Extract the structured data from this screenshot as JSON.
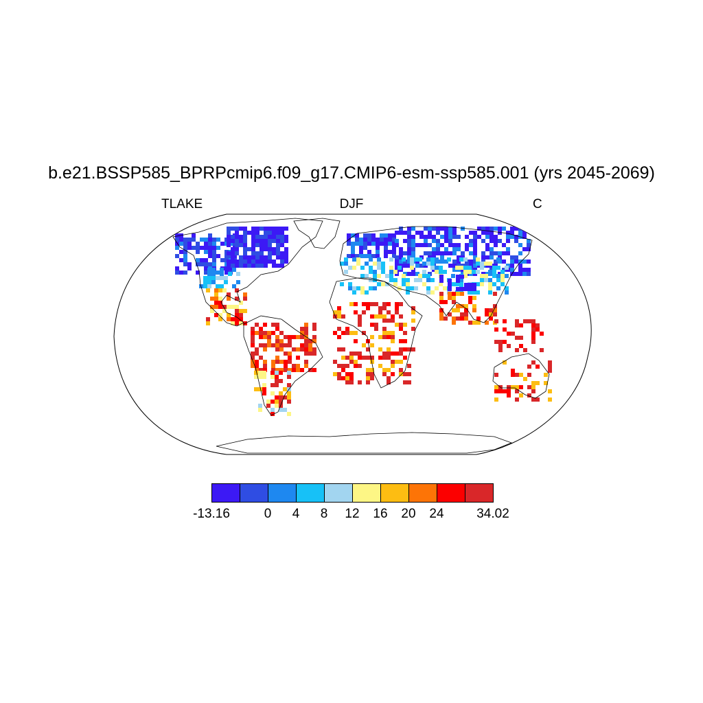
{
  "title": "b.e21.BSSP585_BPRPcmip6.f09_g17.CMIP6-esm-ssp585.001 (yrs 2045-2069)",
  "left_label": "TLAKE",
  "center_label": "DJF",
  "right_label": "C",
  "colorbar": {
    "colors": [
      "#3c19f5",
      "#2f4de3",
      "#1e88f0",
      "#17c1f7",
      "#a2d5f0",
      "#fdf685",
      "#fdbd12",
      "#fd7406",
      "#fc0000",
      "#d92729"
    ],
    "tick_labels": [
      "-13.16",
      "0",
      "4",
      "8",
      "12",
      "16",
      "20",
      "24",
      "34.02"
    ]
  },
  "projection": "Robinson",
  "variable_field": {
    "regions": [
      {
        "name": "North America (north)",
        "level": "-13.16 to 0"
      },
      {
        "name": "Eastern North America",
        "level": "4 to 12"
      },
      {
        "name": "Central America & Caribbean",
        "level": "20 to 34.02"
      },
      {
        "name": "South America",
        "level": "24 to 34.02"
      },
      {
        "name": "Northern Eurasia",
        "level": "-13.16 to 0"
      },
      {
        "name": "Central Asia & Europe",
        "level": "4 to 16"
      },
      {
        "name": "Africa",
        "level": "24 to 34.02"
      },
      {
        "name": "South & Southeast Asia",
        "level": "16 to 34.02"
      },
      {
        "name": "Australia",
        "level": "24 to 34.02"
      }
    ]
  }
}
